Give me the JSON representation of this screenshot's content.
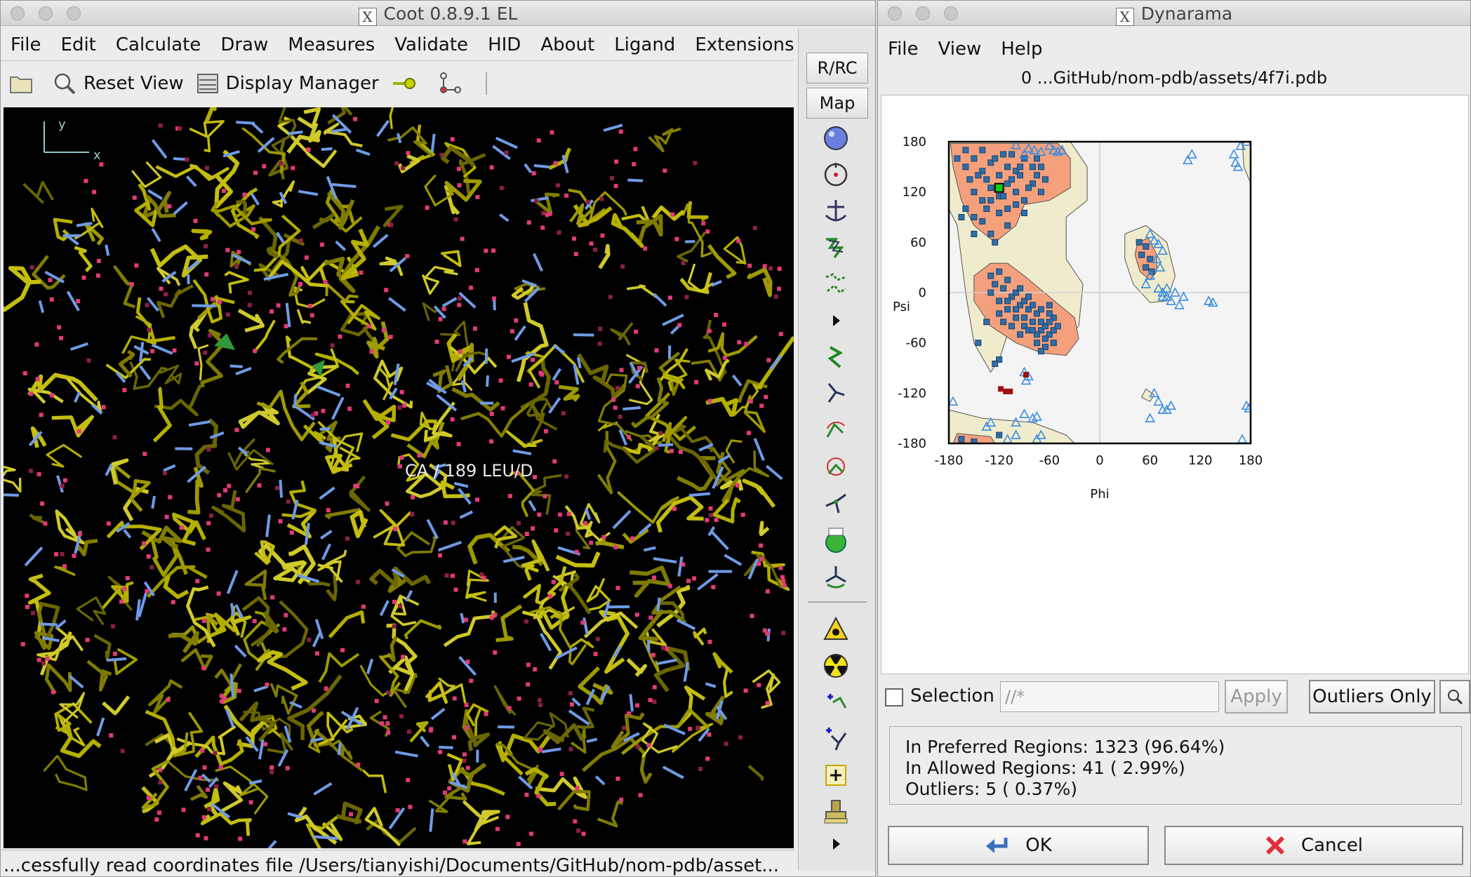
{
  "coot": {
    "title": "Coot 0.8.9.1 EL",
    "menu": [
      "File",
      "Edit",
      "Calculate",
      "Draw",
      "Measures",
      "Validate",
      "HID",
      "About",
      "Ligand",
      "Extensions"
    ],
    "toolbar": {
      "reset_view": "Reset View",
      "display_manager": "Display Manager"
    },
    "side_buttons": {
      "rrc": "R/RC",
      "map": "Map"
    },
    "axes": {
      "y": "y",
      "x": "x"
    },
    "atom_label": "CA / 189 LEU/D",
    "status": "...cessfully read coordinates file /Users/tianyishi/Documents/GitHub/nom-pdb/asset..."
  },
  "dynarama": {
    "title": "Dynarama",
    "menu": [
      "File",
      "View",
      "Help"
    ],
    "file_label": "0 ...GitHub/nom-pdb/assets/4f7i.pdb",
    "selection_label": "Selection",
    "selection_value": "//*",
    "apply": "Apply",
    "outliers_only": "Outliers Only",
    "stats": {
      "preferred": "In Preferred Regions:  1323  (96.64%)",
      "allowed": "In Allowed Regions:  41  ( 2.99%)",
      "outliers": "Outliers:  5  ( 0.37%)"
    },
    "ok": "OK",
    "cancel": "Cancel"
  },
  "chart_data": {
    "type": "scatter",
    "title": "",
    "xlabel": "Phi",
    "ylabel": "Psi",
    "xlim": [
      -180,
      180
    ],
    "ylim": [
      -180,
      180
    ],
    "xticks": [
      -180,
      -120,
      -60,
      0,
      60,
      120,
      180
    ],
    "yticks": [
      180,
      120,
      60,
      0,
      -60,
      -120,
      -180
    ],
    "colors": {
      "preferred": "#f5a07d",
      "allowed": "#efeccd",
      "background": "#f4f4f4",
      "square": "#2f6ea8",
      "triangle": "#3a8de0",
      "outlier": "#a01010",
      "selected": "#12d012"
    },
    "squares": [
      [
        -160,
        150
      ],
      [
        -150,
        160
      ],
      [
        -140,
        145
      ],
      [
        -130,
        155
      ],
      [
        -120,
        140
      ],
      [
        -110,
        150
      ],
      [
        -100,
        145
      ],
      [
        -90,
        160
      ],
      [
        -80,
        130
      ],
      [
        -75,
        140
      ],
      [
        -70,
        120
      ],
      [
        -65,
        135
      ],
      [
        -150,
        120
      ],
      [
        -140,
        110
      ],
      [
        -130,
        125
      ],
      [
        -120,
        115
      ],
      [
        -110,
        130
      ],
      [
        -100,
        120
      ],
      [
        -90,
        110
      ],
      [
        -85,
        125
      ],
      [
        -155,
        135
      ],
      [
        -145,
        140
      ],
      [
        -135,
        135
      ],
      [
        -125,
        160
      ],
      [
        -115,
        165
      ],
      [
        -105,
        135
      ],
      [
        -95,
        140
      ],
      [
        -160,
        100
      ],
      [
        -150,
        90
      ],
      [
        -140,
        85
      ],
      [
        -130,
        70
      ],
      [
        -120,
        95
      ],
      [
        -110,
        80
      ],
      [
        -165,
        90
      ],
      [
        -100,
        105
      ],
      [
        -150,
        70
      ],
      [
        -125,
        60
      ],
      [
        -135,
        100
      ],
      [
        -95,
        150
      ],
      [
        -105,
        165
      ],
      [
        -75,
        160
      ],
      [
        -70,
        150
      ],
      [
        -80,
        150
      ],
      [
        -170,
        160
      ],
      [
        -160,
        170
      ],
      [
        -140,
        170
      ],
      [
        -130,
        110
      ],
      [
        -90,
        95
      ],
      [
        -115,
        115
      ],
      [
        -110,
        100
      ],
      [
        -120,
        -10
      ],
      [
        -110,
        -20
      ],
      [
        -100,
        -30
      ],
      [
        -90,
        -40
      ],
      [
        -80,
        -35
      ],
      [
        -70,
        -45
      ],
      [
        -65,
        -40
      ],
      [
        -60,
        -50
      ],
      [
        -55,
        -30
      ],
      [
        -75,
        -25
      ],
      [
        -85,
        -20
      ],
      [
        -95,
        -15
      ],
      [
        -105,
        -5
      ],
      [
        -115,
        5
      ],
      [
        -125,
        10
      ],
      [
        -130,
        20
      ],
      [
        -120,
        25
      ],
      [
        -110,
        15
      ],
      [
        -100,
        0
      ],
      [
        -90,
        -10
      ],
      [
        -80,
        -15
      ],
      [
        -70,
        -20
      ],
      [
        -60,
        -25
      ],
      [
        -65,
        -55
      ],
      [
        -75,
        -50
      ],
      [
        -85,
        -45
      ],
      [
        -95,
        -50
      ],
      [
        -60,
        -35
      ],
      [
        -55,
        -45
      ],
      [
        -70,
        -35
      ],
      [
        -80,
        -45
      ],
      [
        -90,
        -30
      ],
      [
        -100,
        -20
      ],
      [
        -110,
        -10
      ],
      [
        -120,
        -25
      ],
      [
        -130,
        0
      ],
      [
        -135,
        -35
      ],
      [
        -105,
        -40
      ],
      [
        -115,
        -35
      ],
      [
        -75,
        -60
      ],
      [
        -65,
        -65
      ],
      [
        -50,
        -40
      ],
      [
        -85,
        -5
      ],
      [
        -95,
        5
      ],
      [
        -120,
        -80
      ],
      [
        -125,
        -85
      ],
      [
        -145,
        -60
      ],
      [
        -55,
        -60
      ],
      [
        -70,
        -70
      ],
      [
        -60,
        -15
      ],
      [
        47,
        60
      ],
      [
        50,
        45
      ],
      [
        55,
        30
      ],
      [
        60,
        40
      ],
      [
        62,
        25
      ],
      [
        55,
        55
      ],
      [
        -165,
        -175
      ],
      [
        -150,
        -178
      ],
      [
        -120,
        -170
      ]
    ],
    "triangles": [
      [
        -100,
        176
      ],
      [
        -85,
        172
      ],
      [
        -78,
        170
      ],
      [
        -70,
        168
      ],
      [
        -60,
        175
      ],
      [
        -55,
        170
      ],
      [
        -50,
        168
      ],
      [
        -45,
        170
      ],
      [
        -90,
        165
      ],
      [
        110,
        165
      ],
      [
        105,
        158
      ],
      [
        160,
        165
      ],
      [
        162,
        155
      ],
      [
        165,
        150
      ],
      [
        168,
        175
      ],
      [
        175,
        180
      ],
      [
        60,
        70
      ],
      [
        65,
        62
      ],
      [
        70,
        58
      ],
      [
        75,
        50
      ],
      [
        68,
        40
      ],
      [
        72,
        30
      ],
      [
        60,
        20
      ],
      [
        55,
        10
      ],
      [
        70,
        5
      ],
      [
        75,
        0
      ],
      [
        80,
        -5
      ],
      [
        85,
        -10
      ],
      [
        90,
        0
      ],
      [
        95,
        -15
      ],
      [
        100,
        -5
      ],
      [
        130,
        -10
      ],
      [
        135,
        -12
      ],
      [
        80,
        5
      ],
      [
        75,
        -5
      ],
      [
        -85,
        -100
      ],
      [
        -88,
        -105
      ],
      [
        -90,
        -95
      ],
      [
        65,
        -120
      ],
      [
        70,
        -130
      ],
      [
        75,
        -140
      ],
      [
        80,
        -140
      ],
      [
        85,
        -135
      ],
      [
        60,
        -150
      ],
      [
        175,
        -135
      ],
      [
        178,
        -138
      ],
      [
        -175,
        -130
      ],
      [
        -80,
        -150
      ],
      [
        -90,
        -145
      ],
      [
        -75,
        -148
      ],
      [
        -100,
        -155
      ],
      [
        -130,
        -155
      ],
      [
        -135,
        -160
      ],
      [
        -100,
        -170
      ],
      [
        -110,
        -175
      ],
      [
        -75,
        -175
      ],
      [
        -70,
        -170
      ],
      [
        170,
        -175
      ]
    ],
    "outliers": [
      [
        -112,
        -118
      ],
      [
        -118,
        -115
      ],
      [
        -107,
        -118
      ],
      [
        -88,
        -98
      ]
    ],
    "selected": [
      -120,
      125
    ]
  }
}
